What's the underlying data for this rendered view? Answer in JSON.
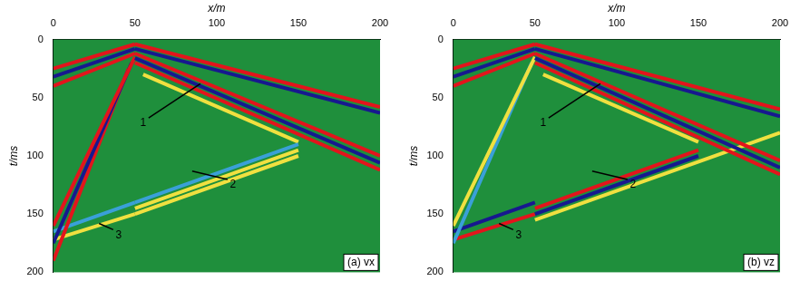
{
  "chart_data": [
    {
      "type": "line",
      "title": "(a) vx",
      "x_label": "x/m",
      "y_label": "t/ms",
      "xlim": [
        0,
        200
      ],
      "xticks": [
        0,
        50,
        100,
        150,
        200
      ],
      "ylim": [
        0,
        200
      ],
      "yticks": [
        0,
        50,
        100,
        150,
        200
      ],
      "grid": false,
      "series": [
        {
          "color": "#e3141c",
          "x": [
            50,
            0
          ],
          "values": [
            4,
            25
          ]
        },
        {
          "color": "#17188f",
          "x": [
            50,
            0
          ],
          "values": [
            8,
            32
          ]
        },
        {
          "color": "#e3141c",
          "x": [
            50,
            0
          ],
          "values": [
            12,
            40
          ]
        },
        {
          "color": "#e3141c",
          "x": [
            50,
            200
          ],
          "values": [
            4,
            58
          ]
        },
        {
          "color": "#17188f",
          "x": [
            50,
            200
          ],
          "values": [
            8,
            63
          ]
        },
        {
          "color": "#e3141c",
          "x": [
            50,
            200
          ],
          "values": [
            12,
            100
          ]
        },
        {
          "color": "#17188f",
          "x": [
            50,
            200
          ],
          "values": [
            16,
            106
          ]
        },
        {
          "color": "#e3141c",
          "x": [
            50,
            200
          ],
          "values": [
            20,
            112
          ]
        },
        {
          "color": "#e3141c",
          "x": [
            50,
            0
          ],
          "values": [
            15,
            160
          ]
        },
        {
          "color": "#17188f",
          "x": [
            48,
            0
          ],
          "values": [
            20,
            175
          ]
        },
        {
          "color": "#e3141c",
          "x": [
            46,
            0
          ],
          "values": [
            25,
            190
          ]
        },
        {
          "color": "#f0e040",
          "x": [
            50,
            150
          ],
          "values": [
            145,
            95
          ]
        },
        {
          "color": "#f0e040",
          "x": [
            50,
            150
          ],
          "values": [
            150,
            100
          ]
        },
        {
          "color": "#3aa0d8",
          "x": [
            50,
            150
          ],
          "values": [
            140,
            90
          ]
        },
        {
          "color": "#f0e040",
          "x": [
            50,
            0
          ],
          "values": [
            150,
            172
          ]
        },
        {
          "color": "#3aa0d8",
          "x": [
            50,
            0
          ],
          "values": [
            140,
            165
          ]
        },
        {
          "color": "#f0e040",
          "x": [
            55,
            150
          ],
          "values": [
            30,
            88
          ]
        }
      ],
      "annotations": [
        {
          "text": "1",
          "x": 55,
          "y": 72,
          "tip_x": 90,
          "tip_y": 38
        },
        {
          "text": "2",
          "x": 110,
          "y": 125,
          "tip_x": 85,
          "tip_y": 113
        },
        {
          "text": "3",
          "x": 40,
          "y": 168,
          "tip_x": 28,
          "tip_y": 158
        }
      ]
    },
    {
      "type": "line",
      "title": "(b) vz",
      "x_label": "x/m",
      "y_label": "t/ms",
      "xlim": [
        0,
        200
      ],
      "xticks": [
        0,
        50,
        100,
        150,
        200
      ],
      "ylim": [
        0,
        200
      ],
      "yticks": [
        0,
        50,
        100,
        150,
        200
      ],
      "grid": false,
      "series": [
        {
          "color": "#e3141c",
          "x": [
            50,
            0
          ],
          "values": [
            4,
            25
          ]
        },
        {
          "color": "#17188f",
          "x": [
            50,
            0
          ],
          "values": [
            8,
            32
          ]
        },
        {
          "color": "#e3141c",
          "x": [
            50,
            0
          ],
          "values": [
            12,
            40
          ]
        },
        {
          "color": "#e3141c",
          "x": [
            50,
            200
          ],
          "values": [
            4,
            60
          ]
        },
        {
          "color": "#17188f",
          "x": [
            50,
            200
          ],
          "values": [
            8,
            66
          ]
        },
        {
          "color": "#e3141c",
          "x": [
            50,
            200
          ],
          "values": [
            12,
            104
          ]
        },
        {
          "color": "#17188f",
          "x": [
            50,
            200
          ],
          "values": [
            16,
            110
          ]
        },
        {
          "color": "#e3141c",
          "x": [
            50,
            200
          ],
          "values": [
            20,
            116
          ]
        },
        {
          "color": "#f0e040",
          "x": [
            50,
            0
          ],
          "values": [
            15,
            160
          ]
        },
        {
          "color": "#3aa0d8",
          "x": [
            48,
            0
          ],
          "values": [
            20,
            175
          ]
        },
        {
          "color": "#e3141c",
          "x": [
            50,
            150
          ],
          "values": [
            145,
            95
          ]
        },
        {
          "color": "#17188f",
          "x": [
            50,
            150
          ],
          "values": [
            150,
            100
          ]
        },
        {
          "color": "#f0e040",
          "x": [
            50,
            200
          ],
          "values": [
            155,
            80
          ]
        },
        {
          "color": "#e3141c",
          "x": [
            50,
            0
          ],
          "values": [
            150,
            172
          ]
        },
        {
          "color": "#17188f",
          "x": [
            50,
            0
          ],
          "values": [
            140,
            165
          ]
        },
        {
          "color": "#f0e040",
          "x": [
            55,
            150
          ],
          "values": [
            30,
            88
          ]
        }
      ],
      "annotations": [
        {
          "text": "1",
          "x": 55,
          "y": 72,
          "tip_x": 90,
          "tip_y": 38
        },
        {
          "text": "2",
          "x": 110,
          "y": 125,
          "tip_x": 85,
          "tip_y": 113
        },
        {
          "text": "3",
          "x": 40,
          "y": 168,
          "tip_x": 28,
          "tip_y": 158
        }
      ]
    }
  ]
}
